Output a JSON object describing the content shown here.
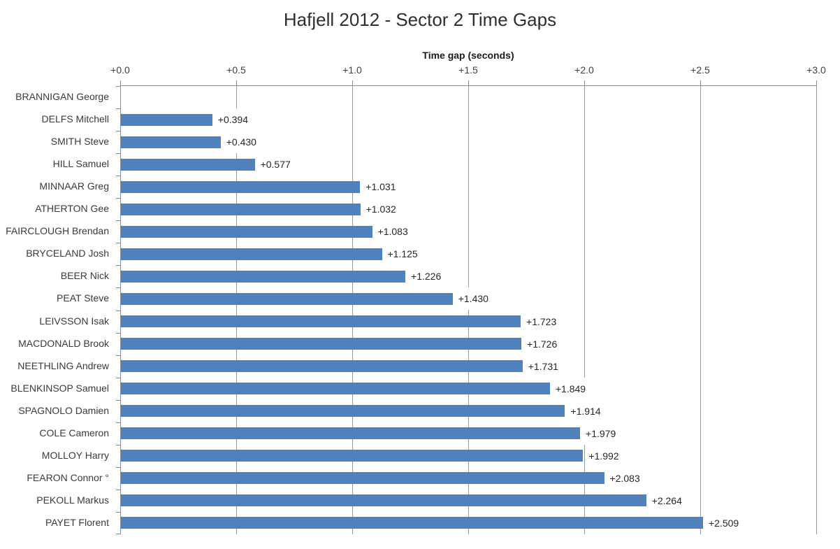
{
  "chart_data": {
    "type": "bar",
    "orientation": "horizontal",
    "title": "Hafjell 2012 - Sector 2 Time Gaps",
    "xlabel": "Time gap (seconds)",
    "ylabel": "",
    "xlim": [
      0.0,
      3.0
    ],
    "x_ticks": [
      "+0.0",
      "+0.5",
      "+1.0",
      "+1.5",
      "+2.0",
      "+2.5",
      "+3.0"
    ],
    "grid": "vertical gridlines on",
    "legend_position": "none",
    "categories": [
      "BRANNIGAN George",
      "DELFS Mitchell",
      "SMITH Steve",
      "HILL Samuel",
      "MINNAAR Greg",
      "ATHERTON Gee",
      "FAIRCLOUGH Brendan",
      "BRYCELAND Josh",
      "BEER Nick",
      "PEAT Steve",
      "LEIVSSON Isak",
      "MACDONALD Brook",
      "NEETHLING Andrew",
      "BLENKINSOP Samuel",
      "SPAGNOLO Damien",
      "COLE Cameron",
      "MOLLOY Harry",
      "FEARON Connor °",
      "PEKOLL Markus",
      "PAYET Florent"
    ],
    "values": [
      0.0,
      0.394,
      0.43,
      0.577,
      1.031,
      1.032,
      1.083,
      1.125,
      1.226,
      1.43,
      1.723,
      1.726,
      1.731,
      1.849,
      1.914,
      1.979,
      1.992,
      2.083,
      2.264,
      2.509
    ],
    "data_labels": [
      "",
      "+0.394",
      "+0.430",
      "+0.577",
      "+1.031",
      "+1.032",
      "+1.083",
      "+1.125",
      "+1.226",
      "+1.430",
      "+1.723",
      "+1.726",
      "+1.731",
      "+1.849",
      "+1.914",
      "+1.979",
      "+1.992",
      "+2.083",
      "+2.264",
      "+2.509"
    ],
    "colors": {
      "bar": "#4F81BD",
      "gridline": "#9a9a9a",
      "axis": "#8c8c8c",
      "text": "#3a3a3a",
      "background": "#ffffff"
    }
  }
}
